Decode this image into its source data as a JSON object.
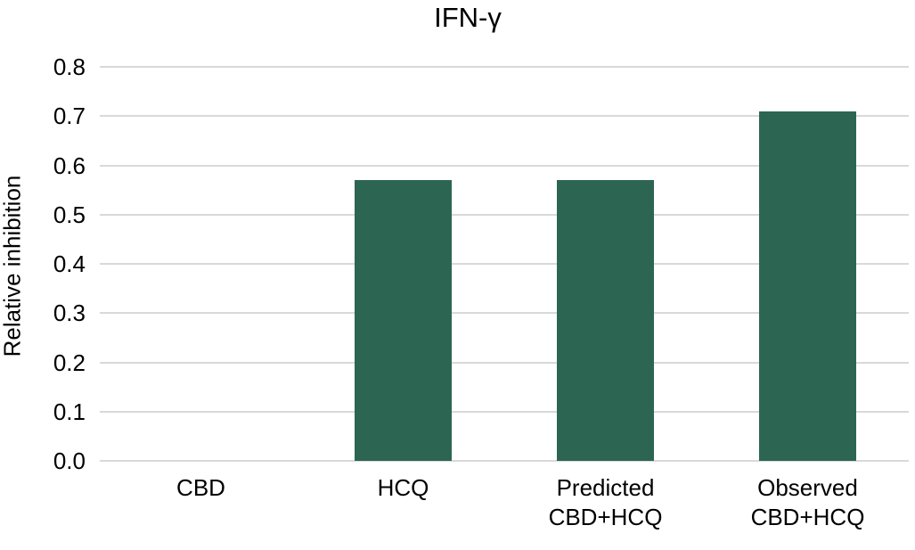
{
  "chart_data": {
    "type": "bar",
    "title": "IFN-γ",
    "xlabel": "",
    "ylabel": "Relative inhibition",
    "categories": [
      "CBD",
      "HCQ",
      "Predicted\nCBD+HCQ",
      "Observed\nCBD+HCQ"
    ],
    "values": [
      0,
      0.57,
      0.57,
      0.71
    ],
    "ylim": [
      0.0,
      0.8
    ],
    "ytick_step": 0.1,
    "ytick_labels": [
      "0.0",
      "0.1",
      "0.2",
      "0.3",
      "0.4",
      "0.5",
      "0.6",
      "0.7",
      "0.8"
    ],
    "grid": true,
    "legend": false,
    "colors": {
      "bar": "#2C6653",
      "gridline": "#D9D9D9",
      "text": "#000000"
    }
  }
}
